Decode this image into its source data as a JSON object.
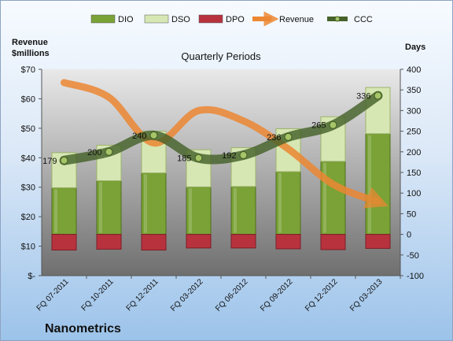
{
  "company": "Nanometrics",
  "chart_data": {
    "type": "bar",
    "title": "Quarterly Periods",
    "left_axis_label": [
      "Revenue",
      "$millions"
    ],
    "right_axis_label": "Days",
    "left_ticks": [
      "$-",
      "$10",
      "$20",
      "$30",
      "$40",
      "$50",
      "$60",
      "$70"
    ],
    "right_ticks": [
      "-100",
      "-50",
      "0",
      "50",
      "100",
      "150",
      "200",
      "250",
      "300",
      "350",
      "400"
    ],
    "ylim_left": [
      0,
      70
    ],
    "ylim_right": [
      -100,
      400
    ],
    "categories": [
      "FQ 07-2011",
      "FQ 10-2011",
      "FQ 12-2011",
      "FQ 03-2012",
      "FQ 06-2012",
      "FQ 09-2012",
      "FQ 12-2012",
      "FQ 03-2013"
    ],
    "series": [
      {
        "name": "DIO",
        "axis": "right",
        "color": "#7aa236",
        "values": [
          113,
          130,
          149,
          115,
          116,
          152,
          177,
          244
        ]
      },
      {
        "name": "DSO",
        "axis": "right",
        "color": "#d7e7b4",
        "values": [
          85,
          86,
          101,
          90,
          94,
          104,
          108,
          112
        ]
      },
      {
        "name": "DPO",
        "axis": "right",
        "color": "#b8323e",
        "values": [
          -38,
          -36,
          -38,
          -33,
          -33,
          -35,
          -37,
          -34
        ]
      },
      {
        "name": "Revenue",
        "axis": "left",
        "color": "#ec8733",
        "values": [
          65.5,
          60.5,
          45,
          56,
          52.5,
          43,
          31,
          25
        ]
      },
      {
        "name": "CCC",
        "axis": "right",
        "color": "#5a7a32",
        "values": [
          179,
          200,
          240,
          185,
          192,
          236,
          265,
          336
        ]
      }
    ],
    "grid": false,
    "legend": "top"
  }
}
